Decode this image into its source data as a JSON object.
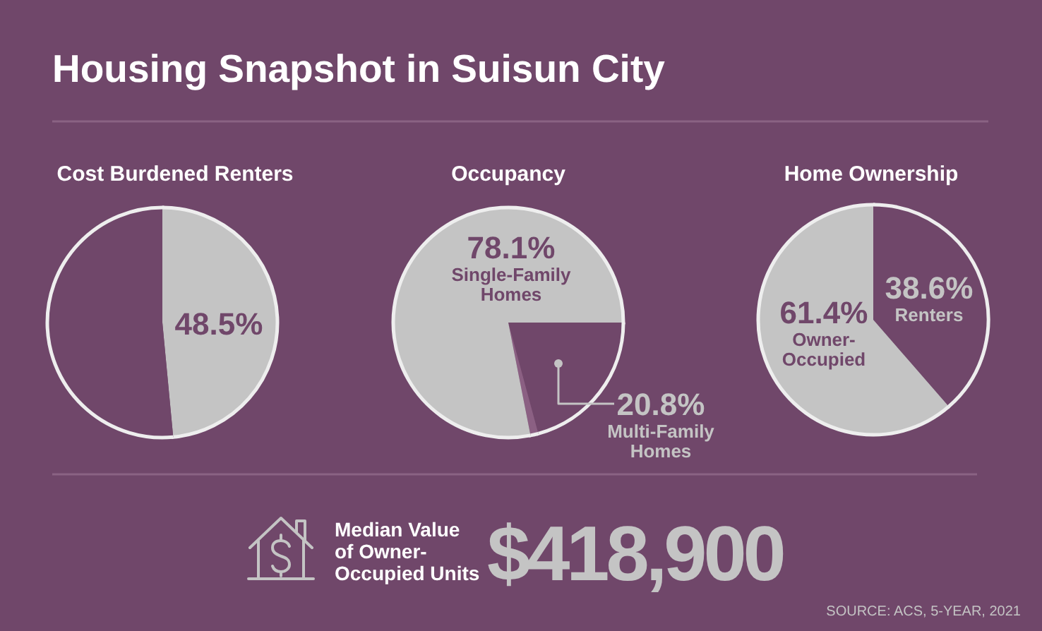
{
  "chart_data": [
    {
      "type": "other",
      "title": "Housing Snapshot in Suisun City"
    },
    {
      "type": "pie",
      "title": "Cost Burdened Renters",
      "categories": [
        null,
        null
      ],
      "values": [
        48.5,
        51.5
      ],
      "colors": [
        "#c4c4c4",
        "#70476a"
      ],
      "value_labels": [
        "48.5%",
        null
      ]
    },
    {
      "type": "pie",
      "title": "Occupancy",
      "categories": [
        "Multi-Family Homes",
        null,
        "Single-Family Homes"
      ],
      "values": [
        20.8,
        1.1,
        78.1
      ],
      "colors": [
        "#70476a",
        "#8b6083",
        "#c4c4c4"
      ],
      "value_labels": [
        "20.8%",
        null,
        "78.1%"
      ]
    },
    {
      "type": "pie",
      "title": "Home Ownership",
      "categories": [
        "Renters",
        "Owner-Occupied"
      ],
      "values": [
        38.6,
        61.4
      ],
      "colors": [
        "#70476a",
        "#c4c4c4"
      ],
      "value_labels": [
        "38.6%",
        "61.4%"
      ]
    },
    {
      "type": "other",
      "title": "Median Value of Owner-Occupied Units",
      "annotations": [
        "$418,900",
        "SOURCE: ACS, 5-YEAR, 2021"
      ]
    }
  ]
}
